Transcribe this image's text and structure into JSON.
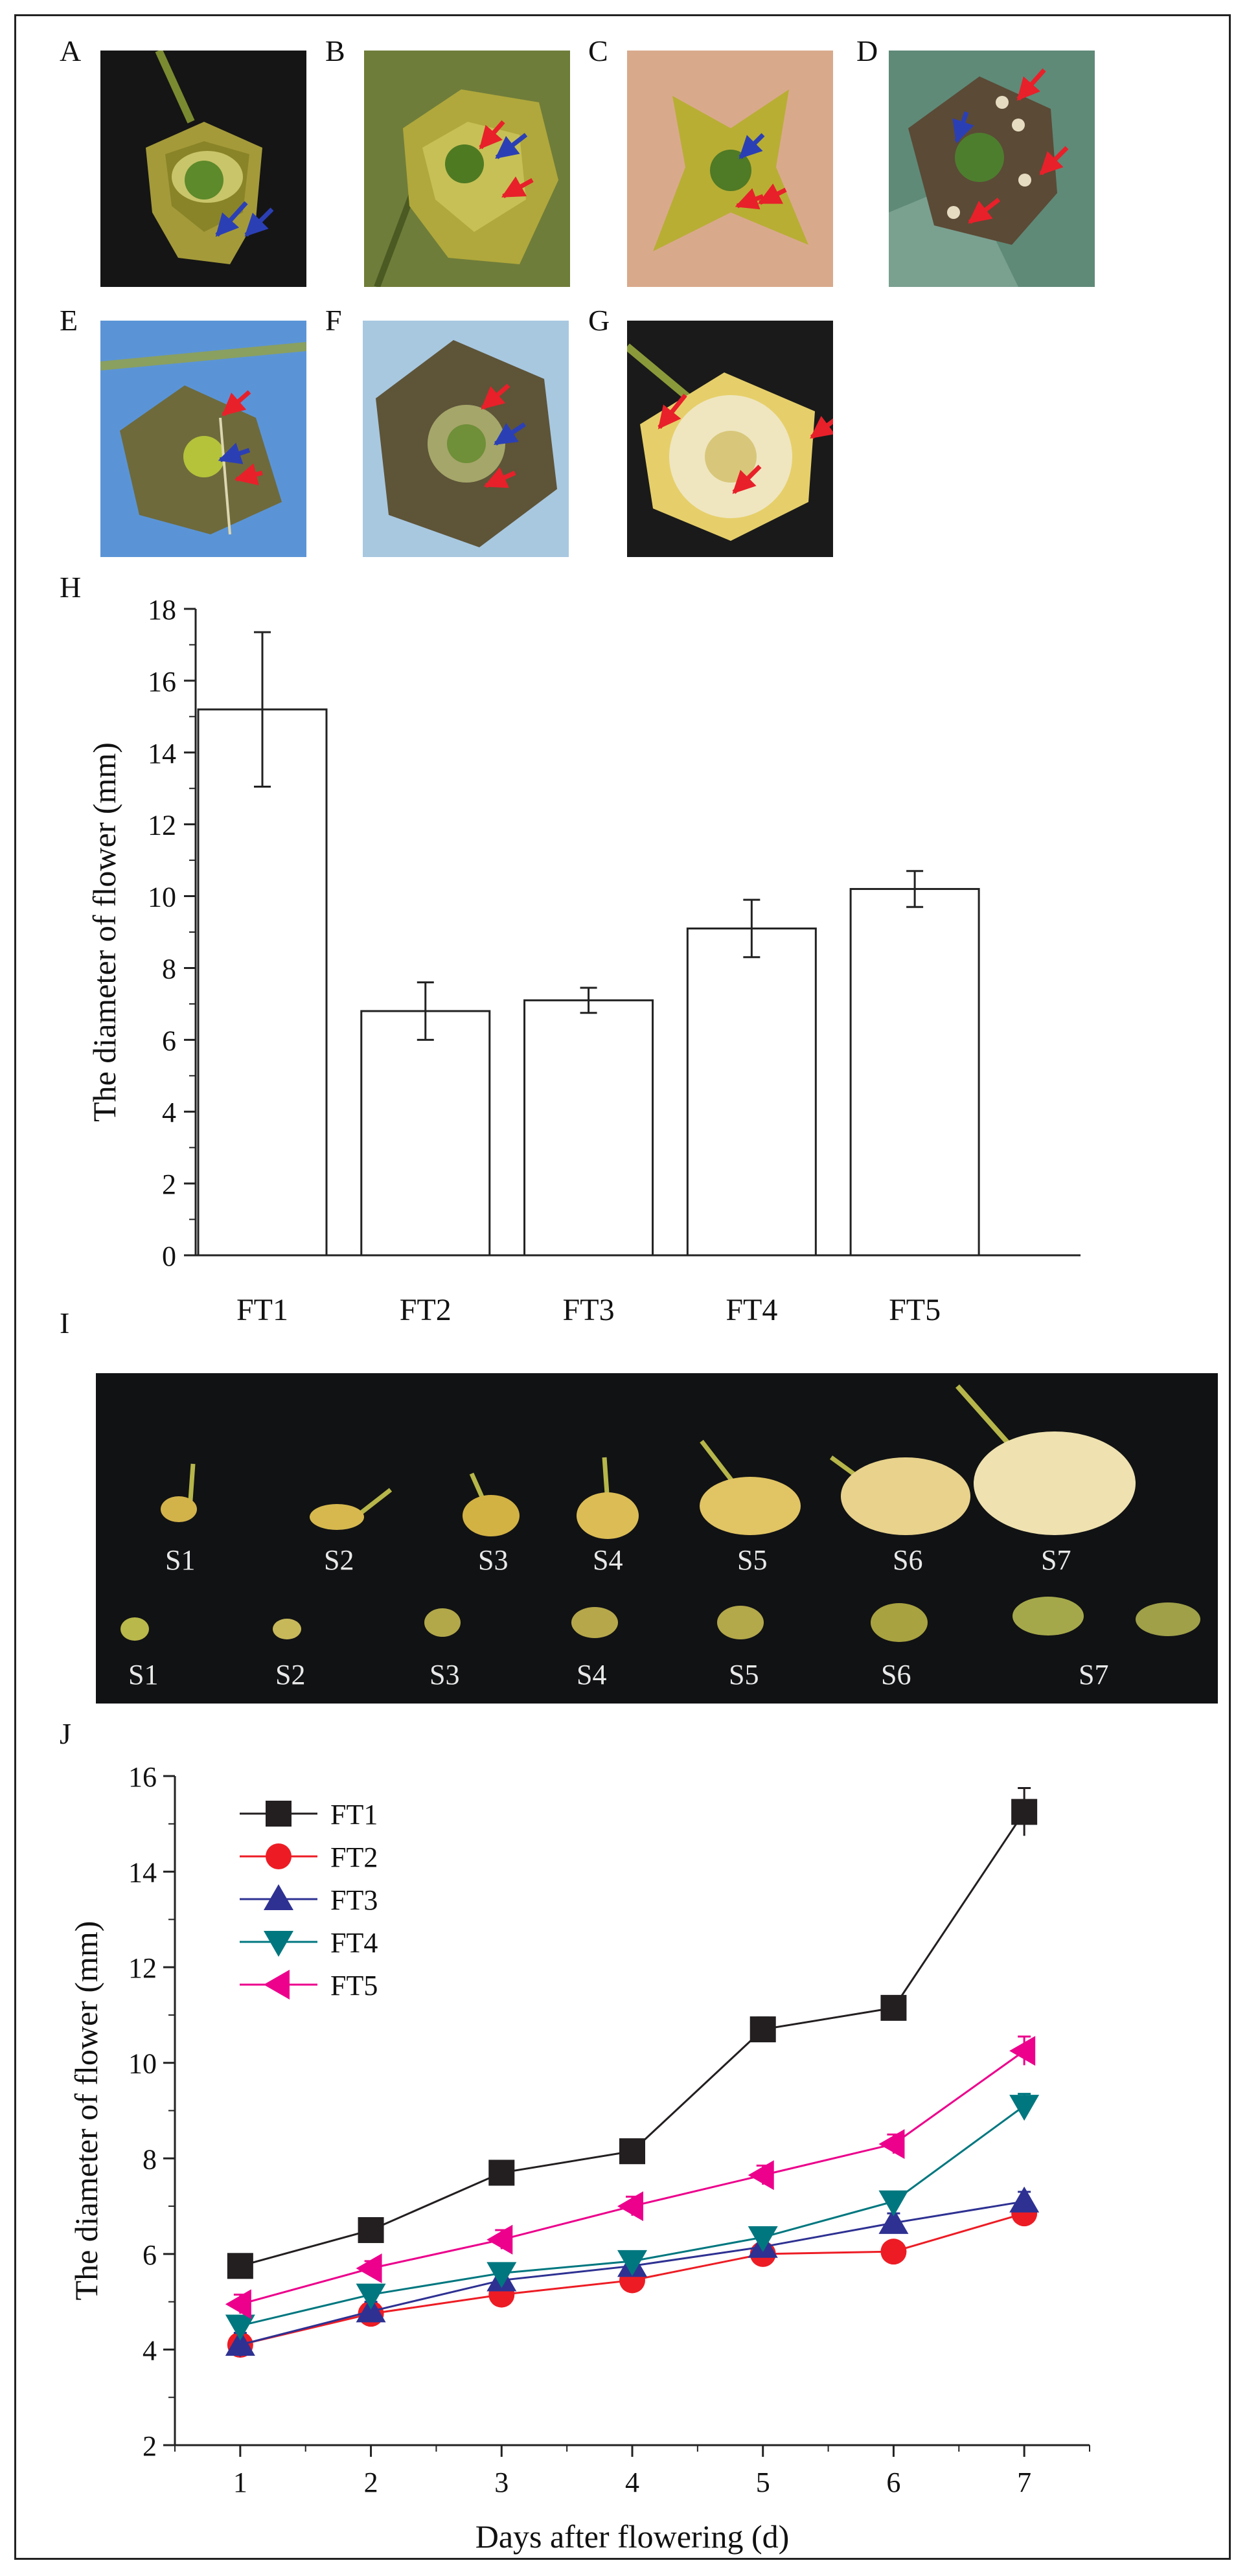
{
  "panel_labels": {
    "A": "A",
    "B": "B",
    "C": "C",
    "D": "D",
    "E": "E",
    "F": "F",
    "G": "G",
    "H": "H",
    "I": "I",
    "J": "J"
  },
  "stage_labels": {
    "row1": [
      "S1",
      "S2",
      "S3",
      "S4",
      "S5",
      "S6",
      "S7"
    ],
    "row2": [
      "S1",
      "S2",
      "S3",
      "S4",
      "S5",
      "S6",
      "S7"
    ]
  },
  "colors": {
    "arrow_red": "#e8202a",
    "arrow_blue": "#2b3fb5",
    "FT1": "#231f20",
    "FT2": "#ed1c24",
    "FT3": "#2e3192",
    "FT4": "#00777f",
    "FT5": "#ec008c"
  },
  "chart_data": [
    {
      "id": "H",
      "type": "bar",
      "title": "",
      "xlabel": "",
      "ylabel": "The diameter of flower (mm)",
      "categories": [
        "FT1",
        "FT2",
        "FT3",
        "FT4",
        "FT5"
      ],
      "values": [
        15.2,
        6.8,
        7.1,
        9.1,
        10.2
      ],
      "errors": [
        2.15,
        0.8,
        0.35,
        0.8,
        0.5
      ],
      "ylim": [
        0,
        18
      ],
      "yticks": [
        "0",
        "2",
        "4",
        "6",
        "8",
        "10",
        "12",
        "14",
        "16",
        "18"
      ]
    },
    {
      "id": "J",
      "type": "line",
      "title": "",
      "xlabel": "Days after flowering (d)",
      "ylabel": "The diameter of flower (mm)",
      "x": [
        1,
        2,
        3,
        4,
        5,
        6,
        7
      ],
      "xticks": [
        "1",
        "2",
        "3",
        "4",
        "5",
        "6",
        "7"
      ],
      "xlim": [
        0.5,
        7.5
      ],
      "ylim": [
        2,
        16
      ],
      "yticks": [
        "2",
        "4",
        "6",
        "8",
        "10",
        "12",
        "14",
        "16"
      ],
      "legend": "top-left",
      "series": [
        {
          "name": "FT1",
          "marker": "square",
          "values": [
            5.75,
            6.5,
            7.7,
            8.15,
            10.7,
            11.15,
            15.25
          ],
          "errors": [
            0.2,
            0.2,
            0.15,
            0.15,
            0.25,
            0.2,
            0.5
          ]
        },
        {
          "name": "FT2",
          "marker": "circle",
          "values": [
            4.1,
            4.75,
            5.15,
            5.45,
            6.0,
            6.05,
            6.85
          ],
          "errors": [
            0.2,
            0.15,
            0.15,
            0.15,
            0.15,
            0.15,
            0.2
          ]
        },
        {
          "name": "FT3",
          "marker": "triangle-up",
          "values": [
            4.1,
            4.8,
            5.45,
            5.75,
            6.15,
            6.65,
            7.1
          ],
          "errors": [
            0.25,
            0.2,
            0.15,
            0.15,
            0.15,
            0.2,
            0.2
          ]
        },
        {
          "name": "FT4",
          "marker": "triangle-down",
          "values": [
            4.5,
            5.15,
            5.6,
            5.85,
            6.35,
            7.1,
            9.1
          ],
          "errors": [
            0.2,
            0.2,
            0.15,
            0.15,
            0.15,
            0.2,
            0.25
          ]
        },
        {
          "name": "FT5",
          "marker": "triangle-left",
          "values": [
            4.95,
            5.7,
            6.3,
            7.0,
            7.65,
            8.3,
            10.25
          ],
          "errors": [
            0.2,
            0.15,
            0.2,
            0.2,
            0.2,
            0.2,
            0.3
          ]
        }
      ]
    }
  ]
}
